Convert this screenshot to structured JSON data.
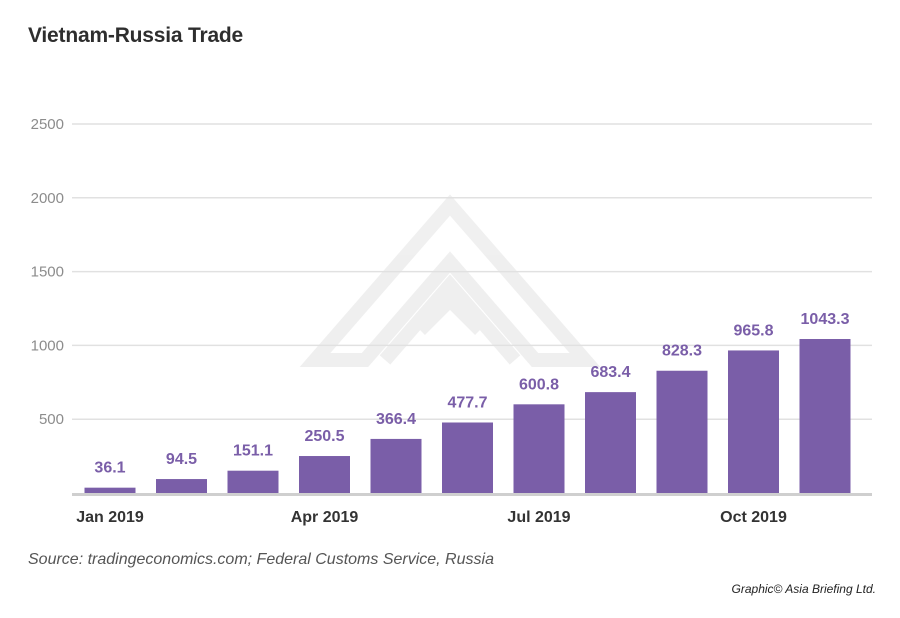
{
  "chart_data": {
    "type": "bar",
    "title": "Vietnam-Russia Trade",
    "categories": [
      "Jan 2019",
      "Feb 2019",
      "Mar 2019",
      "Apr 2019",
      "May 2019",
      "Jun 2019",
      "Jul 2019",
      "Aug 2019",
      "Sep 2019",
      "Oct 2019",
      "Nov 2019"
    ],
    "x_tick_labels": [
      "Jan 2019",
      "",
      "",
      "Apr 2019",
      "",
      "",
      "Jul 2019",
      "",
      "",
      "Oct 2019",
      ""
    ],
    "values": [
      36.1,
      94.5,
      151.1,
      250.5,
      366.4,
      477.7,
      600.8,
      683.4,
      828.3,
      965.8,
      1043.3
    ],
    "data_labels": [
      "36.1",
      "94.5",
      "151.1",
      "250.5",
      "366.4",
      "477.7",
      "600.8",
      "683.4",
      "828.3",
      "965.8",
      "1043.3"
    ],
    "y_ticks": [
      500,
      1000,
      1500,
      2000,
      2500
    ],
    "ylim": [
      0,
      2500
    ],
    "xlabel": "",
    "ylabel": "",
    "grid": true,
    "bar_color": "#7a5ea8",
    "label_color": "#7a5ea8"
  },
  "source": "Source: tradingeconomics.com; Federal Customs Service, Russia",
  "credit": "Graphic© Asia Briefing Ltd."
}
